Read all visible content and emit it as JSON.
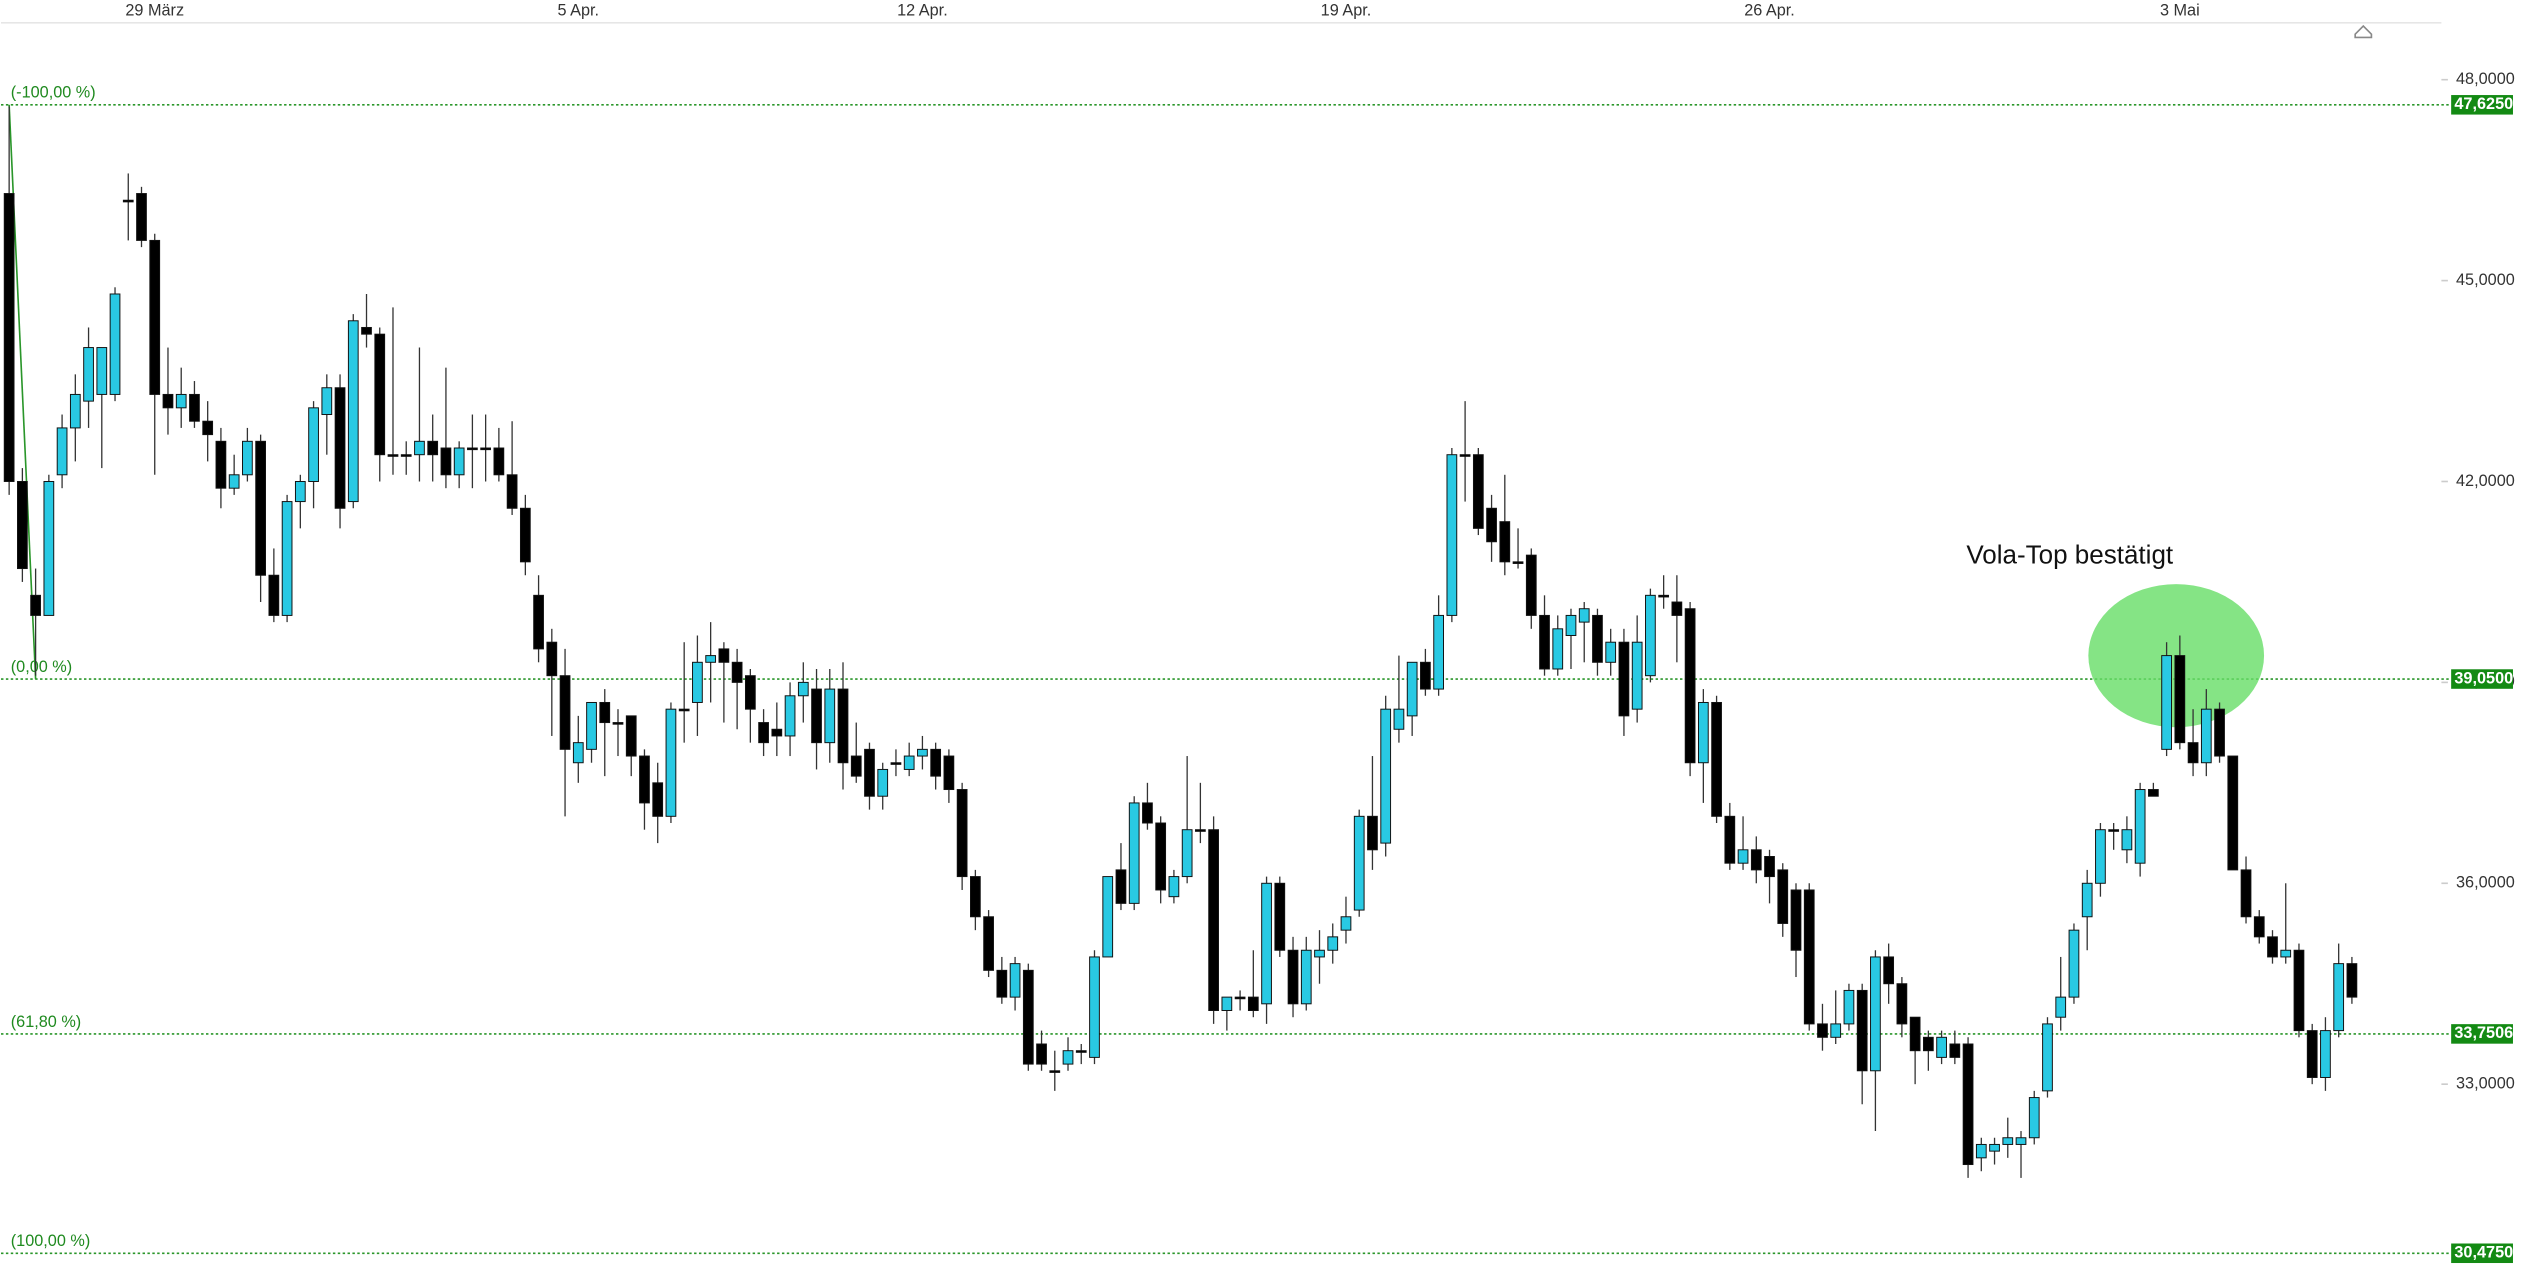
{
  "chart_data": {
    "type": "candlestick",
    "up_color": "#29c9e3",
    "down_color": "#000000",
    "fib_color": "#2a962a",
    "ylim": [
      30.24,
      48.85
    ],
    "yticks": [
      {
        "value": 48,
        "label": "48,0000"
      },
      {
        "value": 45,
        "label": "45,0000"
      },
      {
        "value": 42,
        "label": "42,0000"
      },
      {
        "value": 39,
        "label": "39,0000"
      },
      {
        "value": 36,
        "label": "36,0000"
      },
      {
        "value": 33,
        "label": "33,0000"
      }
    ],
    "fib_levels": [
      {
        "label": "(-100,00 %)",
        "value": 47.625,
        "value_label": "47,6250"
      },
      {
        "label": "(0,00 %)",
        "value": 39.05,
        "value_label": "39,0500"
      },
      {
        "label": "(61,80 %)",
        "value": 33.7506,
        "value_label": "33,7506"
      },
      {
        "label": "(100,00 %)",
        "value": 30.475,
        "value_label": "30,4750"
      }
    ],
    "annotation": "Vola-Top bestätigt",
    "categories": [
      null,
      null,
      null,
      null,
      null,
      null,
      null,
      null,
      null,
      null,
      null,
      "29 März",
      null,
      null,
      null,
      null,
      null,
      null,
      null,
      null,
      null,
      null,
      null,
      null,
      null,
      null,
      null,
      null,
      null,
      null,
      null,
      null,
      null,
      null,
      null,
      null,
      null,
      null,
      null,
      null,
      null,
      null,
      null,
      "5 Apr.",
      null,
      null,
      null,
      null,
      null,
      null,
      null,
      null,
      null,
      null,
      null,
      null,
      null,
      null,
      null,
      null,
      null,
      null,
      null,
      null,
      null,
      null,
      null,
      null,
      null,
      "12 Apr.",
      null,
      null,
      null,
      null,
      null,
      null,
      null,
      null,
      null,
      null,
      null,
      null,
      null,
      null,
      null,
      null,
      null,
      null,
      null,
      null,
      null,
      null,
      null,
      null,
      null,
      null,
      null,
      null,
      null,
      null,
      null,
      "19 Apr.",
      null,
      null,
      null,
      null,
      null,
      null,
      null,
      null,
      null,
      null,
      null,
      null,
      null,
      null,
      null,
      null,
      null,
      null,
      null,
      null,
      null,
      null,
      null,
      null,
      null,
      null,
      null,
      null,
      null,
      null,
      null,
      "26 Apr.",
      null,
      null,
      null,
      null,
      null,
      null,
      null,
      null,
      null,
      null,
      null,
      null,
      null,
      null,
      null,
      null,
      null,
      null,
      null,
      null,
      null,
      null,
      null,
      null,
      null,
      null,
      null,
      null,
      null,
      null,
      "3 Mai",
      null,
      null,
      null,
      null,
      null,
      null,
      null,
      null,
      null,
      null,
      null,
      null,
      null
    ],
    "ohlc": [
      [
        46.3,
        47.6,
        41.8,
        42.0
      ],
      [
        42.0,
        42.2,
        40.5,
        40.7
      ],
      [
        40.3,
        40.7,
        39.1,
        40.0
      ],
      [
        40.0,
        42.1,
        40.0,
        42.0
      ],
      [
        42.1,
        43.0,
        41.9,
        42.8
      ],
      [
        42.8,
        43.6,
        42.3,
        43.3
      ],
      [
        43.2,
        44.3,
        42.8,
        44.0
      ],
      [
        43.3,
        44.0,
        42.2,
        44.0
      ],
      [
        43.3,
        44.9,
        43.2,
        44.8
      ],
      [
        46.2,
        46.6,
        45.6,
        46.2
      ],
      [
        46.3,
        46.4,
        45.5,
        45.6
      ],
      [
        45.6,
        45.7,
        42.1,
        43.3
      ],
      [
        43.3,
        44.0,
        42.7,
        43.1
      ],
      [
        43.1,
        43.7,
        42.8,
        43.3
      ],
      [
        43.3,
        43.5,
        42.8,
        42.9
      ],
      [
        42.9,
        43.2,
        42.3,
        42.7
      ],
      [
        42.6,
        42.8,
        41.6,
        41.9
      ],
      [
        41.9,
        42.4,
        41.8,
        42.1
      ],
      [
        42.1,
        42.8,
        42.0,
        42.6
      ],
      [
        42.6,
        42.7,
        40.2,
        40.6
      ],
      [
        40.6,
        41.0,
        39.9,
        40.0
      ],
      [
        40.0,
        41.8,
        39.9,
        41.7
      ],
      [
        41.7,
        42.1,
        41.3,
        42.0
      ],
      [
        42.0,
        43.2,
        41.6,
        43.1
      ],
      [
        43.0,
        43.6,
        42.4,
        43.4
      ],
      [
        43.4,
        43.6,
        41.3,
        41.6
      ],
      [
        41.7,
        44.5,
        41.6,
        44.4
      ],
      [
        44.3,
        44.8,
        44.0,
        44.2
      ],
      [
        44.2,
        44.3,
        42.0,
        42.4
      ],
      [
        42.4,
        44.6,
        42.1,
        42.4
      ],
      [
        42.4,
        42.6,
        42.1,
        42.4
      ],
      [
        42.4,
        44.0,
        42.0,
        42.6
      ],
      [
        42.6,
        43.0,
        42.0,
        42.4
      ],
      [
        42.5,
        43.7,
        41.9,
        42.1
      ],
      [
        42.1,
        42.6,
        41.9,
        42.5
      ],
      [
        42.5,
        43.0,
        41.9,
        42.5
      ],
      [
        42.5,
        43.0,
        42.0,
        42.5
      ],
      [
        42.5,
        42.8,
        42.0,
        42.1
      ],
      [
        42.1,
        42.9,
        41.5,
        41.6
      ],
      [
        41.6,
        41.8,
        40.6,
        40.8
      ],
      [
        40.3,
        40.6,
        39.3,
        39.5
      ],
      [
        39.6,
        39.8,
        38.2,
        39.1
      ],
      [
        39.1,
        39.5,
        37.0,
        38.0
      ],
      [
        37.8,
        38.5,
        37.5,
        38.1
      ],
      [
        38.0,
        38.7,
        37.8,
        38.7
      ],
      [
        38.7,
        38.9,
        37.6,
        38.4
      ],
      [
        38.4,
        38.6,
        37.9,
        38.4
      ],
      [
        38.5,
        38.5,
        37.6,
        37.9
      ],
      [
        37.9,
        38.0,
        36.8,
        37.2
      ],
      [
        37.5,
        37.8,
        36.6,
        37.0
      ],
      [
        37.0,
        38.7,
        36.9,
        38.6
      ],
      [
        38.6,
        39.6,
        38.1,
        38.6
      ],
      [
        38.7,
        39.7,
        38.2,
        39.3
      ],
      [
        39.3,
        39.9,
        38.7,
        39.4
      ],
      [
        39.5,
        39.6,
        38.4,
        39.3
      ],
      [
        39.3,
        39.5,
        38.3,
        39.0
      ],
      [
        39.1,
        39.2,
        38.1,
        38.6
      ],
      [
        38.4,
        38.6,
        37.9,
        38.1
      ],
      [
        38.3,
        38.7,
        37.9,
        38.2
      ],
      [
        38.2,
        39.0,
        37.9,
        38.8
      ],
      [
        38.8,
        39.3,
        38.4,
        39.0
      ],
      [
        38.9,
        39.2,
        37.7,
        38.1
      ],
      [
        38.1,
        39.2,
        37.8,
        38.9
      ],
      [
        38.9,
        39.3,
        37.4,
        37.8
      ],
      [
        37.9,
        38.4,
        37.5,
        37.6
      ],
      [
        38.0,
        38.1,
        37.1,
        37.3
      ],
      [
        37.3,
        37.8,
        37.1,
        37.7
      ],
      [
        37.8,
        38.0,
        37.6,
        37.8
      ],
      [
        37.7,
        38.1,
        37.6,
        37.9
      ],
      [
        37.9,
        38.2,
        37.7,
        38.0
      ],
      [
        38.0,
        38.1,
        37.4,
        37.6
      ],
      [
        37.9,
        38.0,
        37.2,
        37.4
      ],
      [
        37.4,
        37.5,
        35.9,
        36.1
      ],
      [
        36.1,
        36.2,
        35.3,
        35.5
      ],
      [
        35.5,
        35.6,
        34.6,
        34.7
      ],
      [
        34.7,
        34.9,
        34.2,
        34.3
      ],
      [
        34.3,
        34.9,
        34.1,
        34.8
      ],
      [
        34.7,
        34.8,
        33.2,
        33.3
      ],
      [
        33.6,
        33.8,
        33.2,
        33.3
      ],
      [
        33.2,
        33.5,
        32.9,
        33.2
      ],
      [
        33.3,
        33.7,
        33.2,
        33.5
      ],
      [
        33.5,
        33.6,
        33.3,
        33.5
      ],
      [
        33.4,
        35.0,
        33.3,
        34.9
      ],
      [
        34.9,
        36.1,
        34.9,
        36.1
      ],
      [
        36.2,
        36.6,
        35.6,
        35.7
      ],
      [
        35.7,
        37.3,
        35.6,
        37.2
      ],
      [
        37.2,
        37.5,
        36.8,
        36.9
      ],
      [
        36.9,
        37.0,
        35.7,
        35.9
      ],
      [
        35.8,
        36.2,
        35.7,
        36.1
      ],
      [
        36.1,
        37.9,
        36.0,
        36.8
      ],
      [
        36.8,
        37.5,
        36.6,
        36.8
      ],
      [
        36.8,
        37.0,
        33.9,
        34.1
      ],
      [
        34.1,
        34.3,
        33.8,
        34.3
      ],
      [
        34.3,
        34.4,
        34.1,
        34.3
      ],
      [
        34.3,
        35.0,
        34.0,
        34.1
      ],
      [
        34.2,
        36.1,
        33.9,
        36.0
      ],
      [
        36.0,
        36.1,
        34.9,
        35.0
      ],
      [
        35.0,
        35.2,
        34.0,
        34.2
      ],
      [
        34.2,
        35.2,
        34.1,
        35.0
      ],
      [
        34.9,
        35.3,
        34.5,
        35.0
      ],
      [
        35.0,
        35.4,
        34.8,
        35.2
      ],
      [
        35.3,
        35.8,
        35.1,
        35.5
      ],
      [
        35.6,
        37.1,
        35.5,
        37.0
      ],
      [
        37.0,
        37.9,
        36.2,
        36.5
      ],
      [
        36.6,
        38.8,
        36.4,
        38.6
      ],
      [
        38.3,
        39.4,
        38.1,
        38.6
      ],
      [
        38.5,
        39.3,
        38.2,
        39.3
      ],
      [
        39.3,
        39.5,
        38.8,
        38.9
      ],
      [
        38.9,
        40.3,
        38.8,
        40.0
      ],
      [
        40.0,
        42.5,
        39.9,
        42.4
      ],
      [
        42.4,
        43.2,
        41.7,
        42.4
      ],
      [
        42.4,
        42.5,
        41.2,
        41.3
      ],
      [
        41.6,
        41.8,
        40.8,
        41.1
      ],
      [
        41.4,
        42.1,
        40.6,
        40.8
      ],
      [
        40.8,
        41.3,
        40.7,
        40.8
      ],
      [
        40.9,
        41.0,
        39.8,
        40.0
      ],
      [
        40.0,
        40.3,
        39.1,
        39.2
      ],
      [
        39.2,
        40.0,
        39.1,
        39.8
      ],
      [
        39.7,
        40.1,
        39.2,
        40.0
      ],
      [
        39.9,
        40.2,
        39.3,
        40.1
      ],
      [
        40.0,
        40.1,
        39.1,
        39.3
      ],
      [
        39.3,
        39.8,
        39.1,
        39.6
      ],
      [
        39.6,
        39.8,
        38.2,
        38.5
      ],
      [
        38.6,
        40.0,
        38.4,
        39.6
      ],
      [
        39.1,
        40.4,
        39.0,
        40.3
      ],
      [
        40.3,
        40.6,
        40.1,
        40.3
      ],
      [
        40.2,
        40.6,
        39.3,
        40.0
      ],
      [
        40.1,
        40.2,
        37.6,
        37.8
      ],
      [
        37.8,
        38.9,
        37.2,
        38.7
      ],
      [
        38.7,
        38.8,
        36.9,
        37.0
      ],
      [
        37.0,
        37.2,
        36.2,
        36.3
      ],
      [
        36.3,
        37.0,
        36.2,
        36.5
      ],
      [
        36.5,
        36.7,
        36.0,
        36.2
      ],
      [
        36.4,
        36.5,
        35.7,
        36.1
      ],
      [
        36.2,
        36.3,
        35.2,
        35.4
      ],
      [
        35.9,
        36.0,
        34.6,
        35.0
      ],
      [
        35.9,
        36.0,
        33.8,
        33.9
      ],
      [
        33.9,
        34.2,
        33.5,
        33.7
      ],
      [
        33.7,
        34.4,
        33.6,
        33.9
      ],
      [
        33.9,
        34.5,
        33.8,
        34.4
      ],
      [
        34.4,
        34.5,
        32.7,
        33.2
      ],
      [
        33.2,
        35.0,
        32.3,
        34.9
      ],
      [
        34.9,
        35.1,
        34.2,
        34.5
      ],
      [
        34.5,
        34.6,
        33.7,
        33.9
      ],
      [
        34.0,
        34.0,
        33.0,
        33.5
      ],
      [
        33.7,
        33.8,
        33.2,
        33.5
      ],
      [
        33.4,
        33.8,
        33.3,
        33.7
      ],
      [
        33.6,
        33.8,
        33.3,
        33.4
      ],
      [
        33.6,
        33.7,
        31.6,
        31.8
      ],
      [
        31.9,
        32.2,
        31.7,
        32.1
      ],
      [
        32.0,
        32.2,
        31.8,
        32.1
      ],
      [
        32.1,
        32.5,
        31.9,
        32.2
      ],
      [
        32.1,
        32.3,
        31.6,
        32.2
      ],
      [
        32.2,
        32.9,
        32.1,
        32.8
      ],
      [
        32.9,
        34.0,
        32.8,
        33.9
      ],
      [
        34.0,
        34.9,
        33.8,
        34.3
      ],
      [
        34.3,
        35.4,
        34.2,
        35.3
      ],
      [
        35.5,
        36.2,
        35.0,
        36.0
      ],
      [
        36.0,
        36.9,
        35.8,
        36.8
      ],
      [
        36.8,
        36.9,
        36.5,
        36.8
      ],
      [
        36.5,
        37.0,
        36.3,
        36.8
      ],
      [
        36.3,
        37.5,
        36.1,
        37.4
      ],
      [
        37.4,
        37.5,
        37.3,
        37.3
      ],
      [
        38.0,
        39.6,
        37.9,
        39.4
      ],
      [
        39.4,
        39.7,
        38.0,
        38.1
      ],
      [
        38.1,
        38.6,
        37.6,
        37.8
      ],
      [
        37.8,
        38.9,
        37.6,
        38.6
      ],
      [
        38.6,
        38.7,
        37.8,
        37.9
      ],
      [
        37.9,
        37.9,
        36.2,
        36.2
      ],
      [
        36.2,
        36.4,
        35.4,
        35.5
      ],
      [
        35.5,
        35.6,
        35.1,
        35.2
      ],
      [
        35.2,
        35.3,
        34.8,
        34.9
      ],
      [
        34.9,
        36.0,
        34.8,
        35.0
      ],
      [
        35.0,
        35.1,
        33.7,
        33.8
      ],
      [
        33.8,
        33.9,
        33.0,
        33.1
      ],
      [
        33.1,
        34.0,
        32.9,
        33.8
      ],
      [
        33.8,
        35.1,
        33.7,
        34.8
      ],
      [
        34.8,
        34.9,
        34.2,
        34.3
      ]
    ]
  }
}
